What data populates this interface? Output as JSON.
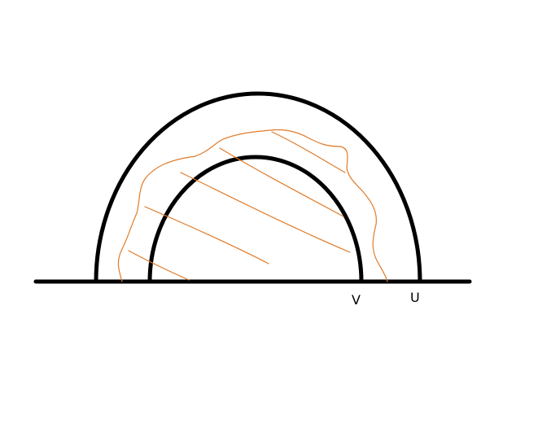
{
  "labels": {
    "v": "V",
    "u": "U"
  },
  "colors": {
    "outline": "#000000",
    "sketch": "#e07b2a",
    "label": "#000000",
    "background": "#ffffff"
  }
}
